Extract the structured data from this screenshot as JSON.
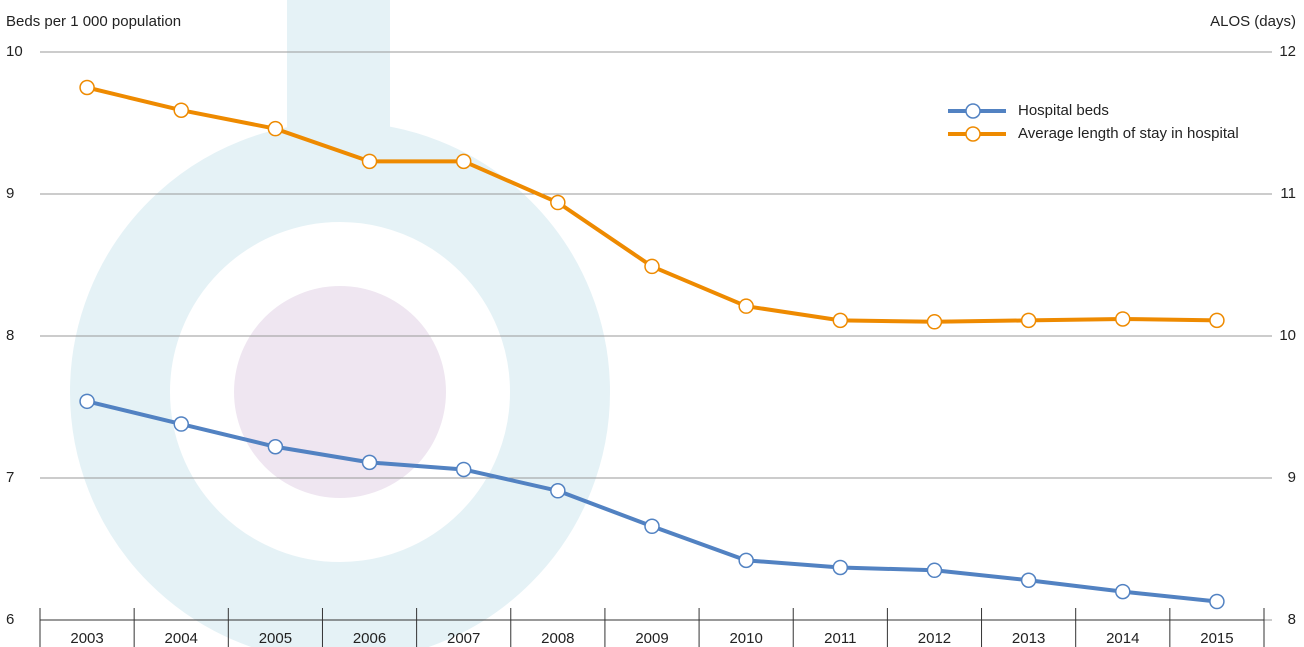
{
  "chart_data": {
    "type": "line",
    "y_label": "Beds per 1 000 population",
    "y2_label": "ALOS (days)",
    "categories": [
      "2003",
      "2004",
      "2005",
      "2006",
      "2007",
      "2008",
      "2009",
      "2010",
      "2011",
      "2012",
      "2013",
      "2014",
      "2015"
    ],
    "series": [
      {
        "name": "Hospital beds",
        "color": "#5282c2",
        "axis": "y",
        "values": [
          7.54,
          7.38,
          7.22,
          7.11,
          7.06,
          6.91,
          6.66,
          6.42,
          6.37,
          6.35,
          6.28,
          6.2,
          6.13
        ]
      },
      {
        "name": "Average length of stay in hospital",
        "color": "#ee8a00",
        "axis": "y2",
        "values": [
          11.75,
          11.59,
          11.46,
          11.23,
          11.23,
          10.94,
          10.49,
          10.21,
          10.11,
          10.1,
          10.11,
          10.12,
          10.11
        ]
      }
    ],
    "ylim": [
      6,
      10
    ],
    "yticks": [
      6,
      7,
      8,
      9,
      10
    ],
    "y2lim": [
      8,
      12
    ],
    "y2ticks": [
      8,
      9,
      10,
      11,
      12
    ],
    "grid": true,
    "legend": "top-right"
  }
}
